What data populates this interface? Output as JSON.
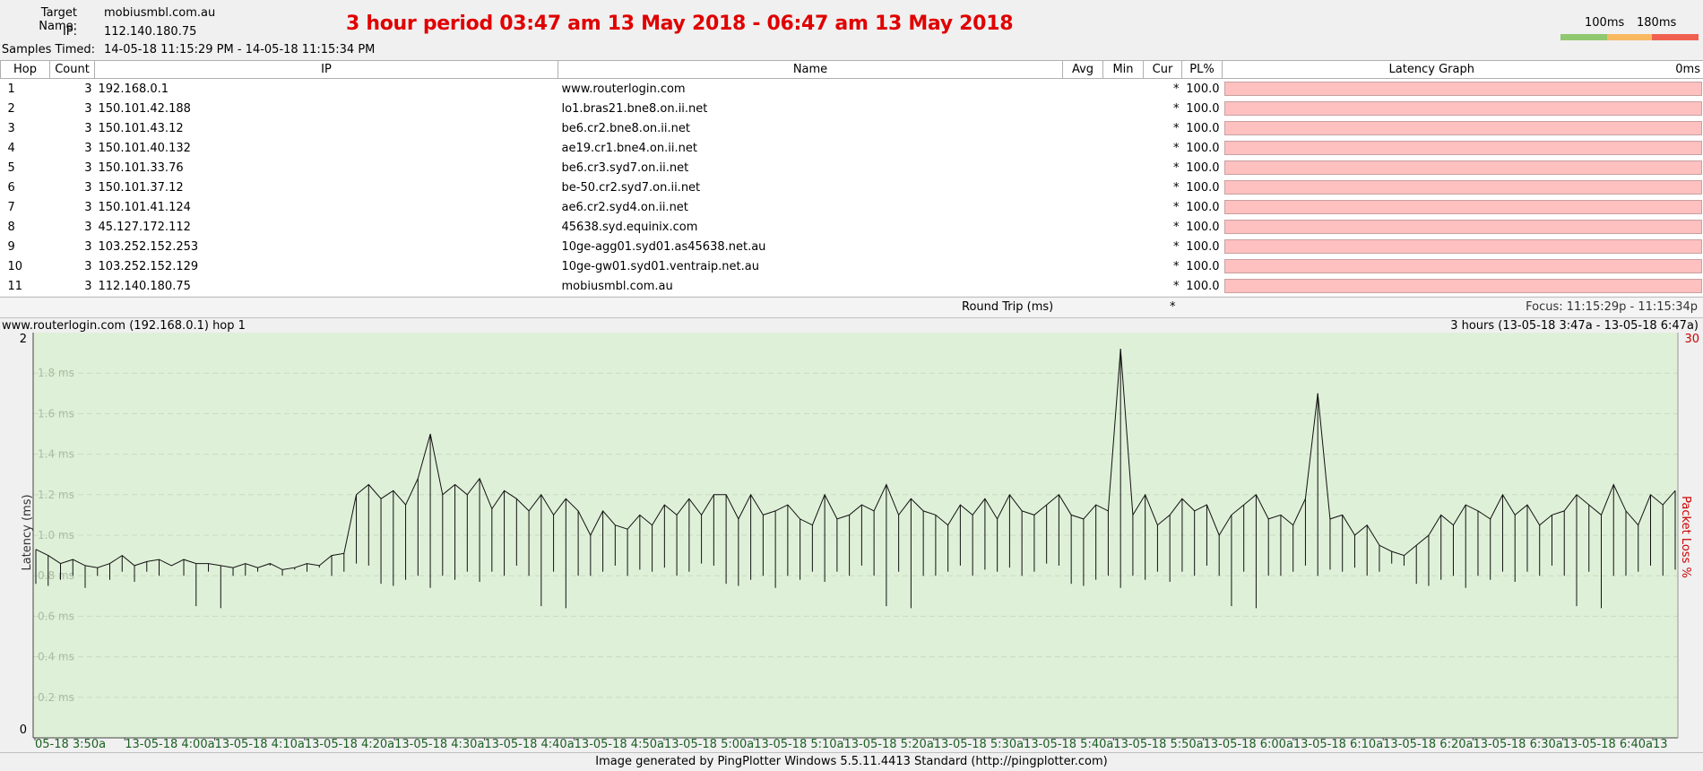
{
  "header": {
    "target_label": "Target Name:",
    "target_value": "mobiusmbl.com.au",
    "ip_label": "IP:",
    "ip_value": "112.140.180.75",
    "samples_label": "Samples Timed:",
    "samples_value": "14-05-18 11:15:29 PM - 14-05-18 11:15:34 PM",
    "banner": "3 hour period 03:47 am 13 May 2018 - 06:47 am 13 May 2018",
    "scale_low": "100ms",
    "scale_high": "180ms",
    "scale_colors": [
      "#90c870",
      "#f8b860",
      "#f06050"
    ]
  },
  "table": {
    "columns": [
      "Hop",
      "Count",
      "IP",
      "Name",
      "Avg",
      "Min",
      "Cur",
      "PL%",
      "Latency Graph",
      "0ms"
    ],
    "rows": [
      {
        "hop": "1",
        "count": "3",
        "ip": "192.168.0.1",
        "name": "www.routerlogin.com",
        "avg": "",
        "min": "",
        "cur": "*",
        "pl": "100.0"
      },
      {
        "hop": "2",
        "count": "3",
        "ip": "150.101.42.188",
        "name": "lo1.bras21.bne8.on.ii.net",
        "avg": "",
        "min": "",
        "cur": "*",
        "pl": "100.0"
      },
      {
        "hop": "3",
        "count": "3",
        "ip": "150.101.43.12",
        "name": "be6.cr2.bne8.on.ii.net",
        "avg": "",
        "min": "",
        "cur": "*",
        "pl": "100.0"
      },
      {
        "hop": "4",
        "count": "3",
        "ip": "150.101.40.132",
        "name": "ae19.cr1.bne4.on.ii.net",
        "avg": "",
        "min": "",
        "cur": "*",
        "pl": "100.0"
      },
      {
        "hop": "5",
        "count": "3",
        "ip": "150.101.33.76",
        "name": "be6.cr3.syd7.on.ii.net",
        "avg": "",
        "min": "",
        "cur": "*",
        "pl": "100.0"
      },
      {
        "hop": "6",
        "count": "3",
        "ip": "150.101.37.12",
        "name": "be-50.cr2.syd7.on.ii.net",
        "avg": "",
        "min": "",
        "cur": "*",
        "pl": "100.0"
      },
      {
        "hop": "7",
        "count": "3",
        "ip": "150.101.41.124",
        "name": "ae6.cr2.syd4.on.ii.net",
        "avg": "",
        "min": "",
        "cur": "*",
        "pl": "100.0"
      },
      {
        "hop": "8",
        "count": "3",
        "ip": "45.127.172.112",
        "name": "45638.syd.equinix.com",
        "avg": "",
        "min": "",
        "cur": "*",
        "pl": "100.0"
      },
      {
        "hop": "9",
        "count": "3",
        "ip": "103.252.152.253",
        "name": "10ge-agg01.syd01.as45638.net.au",
        "avg": "",
        "min": "",
        "cur": "*",
        "pl": "100.0"
      },
      {
        "hop": "10",
        "count": "3",
        "ip": "103.252.152.129",
        "name": "10ge-gw01.syd01.ventraip.net.au",
        "avg": "",
        "min": "",
        "cur": "*",
        "pl": "100.0"
      },
      {
        "hop": "11",
        "count": "3",
        "ip": "112.140.180.75",
        "name": "mobiusmbl.com.au",
        "avg": "",
        "min": "",
        "cur": "*",
        "pl": "100.0"
      }
    ],
    "round_trip_label": "Round Trip (ms)",
    "round_trip_cur": "*",
    "focus": "Focus: 11:15:29p - 11:15:34p"
  },
  "graph": {
    "left_title": "www.routerlogin.com (192.168.0.1) hop 1",
    "right_title": "3 hours (13-05-18 3:47a - 13-05-18 6:47a)",
    "footer": "Image generated by PingPlotter Windows 5.5.11.4413 Standard (http://pingplotter.com)"
  },
  "chart_data": {
    "type": "line",
    "title": "",
    "xlabel": "",
    "ylabel": "Latency (ms)",
    "y2label": "Packet Loss %",
    "ylim": [
      0,
      2
    ],
    "y2_top_label": "30",
    "y_axis_end_labels": [
      "2",
      "0"
    ],
    "y_tick_labels": [
      "0.2 ms",
      "0.4 ms",
      "0.6 ms",
      "0.8 ms",
      "1.0 ms",
      "1.2 ms",
      "1.4 ms",
      "1.6 ms",
      "1.8 ms"
    ],
    "x_tick_labels": [
      "05-18 3:50a",
      "13-05-18 4:00a",
      "13-05-18 4:10a",
      "13-05-18 4:20a",
      "13-05-18 4:30a",
      "13-05-18 4:40a",
      "13-05-18 4:50a",
      "13-05-18 5:00a",
      "13-05-18 5:10a",
      "13-05-18 5:20a",
      "13-05-18 5:30a",
      "13-05-18 5:40a",
      "13-05-18 5:50a",
      "13-05-18 6:00a",
      "13-05-18 6:10a",
      "13-05-18 6:20a",
      "13-05-18 6:30a",
      "13-05-18 6:40a",
      "13"
    ],
    "grid": true,
    "series": [
      {
        "values": [
          0.93,
          0.9,
          0.86,
          0.88,
          0.85,
          0.84,
          0.86,
          0.9,
          0.85,
          0.87,
          0.88,
          0.85,
          0.88,
          0.86,
          0.86,
          0.85,
          0.84,
          0.86,
          0.84,
          0.86,
          0.83,
          0.84,
          0.86,
          0.85,
          0.9,
          0.91,
          1.2,
          1.25,
          1.18,
          1.22,
          1.15,
          1.28,
          1.5,
          1.2,
          1.25,
          1.2,
          1.28,
          1.13,
          1.22,
          1.18,
          1.12,
          1.2,
          1.1,
          1.18,
          1.12,
          1.0,
          1.12,
          1.05,
          1.03,
          1.1,
          1.05,
          1.15,
          1.1,
          1.18,
          1.1,
          1.2,
          1.2,
          1.08,
          1.2,
          1.1,
          1.12,
          1.15,
          1.08,
          1.05,
          1.2,
          1.08,
          1.1,
          1.15,
          1.12,
          1.25,
          1.1,
          1.18,
          1.12,
          1.1,
          1.05,
          1.15,
          1.1,
          1.18,
          1.08,
          1.2,
          1.12,
          1.1,
          1.15,
          1.2,
          1.1,
          1.08,
          1.15,
          1.12,
          1.92,
          1.1,
          1.2,
          1.05,
          1.1,
          1.18,
          1.12,
          1.15,
          1.0,
          1.1,
          1.15,
          1.2,
          1.08,
          1.1,
          1.05,
          1.18,
          1.7,
          1.08,
          1.1,
          1.0,
          1.05,
          0.95,
          0.92,
          0.9,
          0.95,
          1.0,
          1.1,
          1.05,
          1.15,
          1.12,
          1.08,
          1.2,
          1.1,
          1.15,
          1.05,
          1.1,
          1.12,
          1.2,
          1.15,
          1.1,
          1.25,
          1.12,
          1.05,
          1.2,
          1.15,
          1.22
        ]
      }
    ],
    "minima": [
      0.76,
      0.75,
      0.78,
      0.8,
      0.74,
      0.8,
      0.78,
      0.82,
      0.77,
      0.82,
      0.8,
      0.85,
      0.8,
      0.65,
      0.82,
      0.64,
      0.8,
      0.8,
      0.82,
      0.85,
      0.8,
      0.83,
      0.82,
      0.84,
      0.8,
      0.82,
      0.86,
      0.85
    ]
  }
}
